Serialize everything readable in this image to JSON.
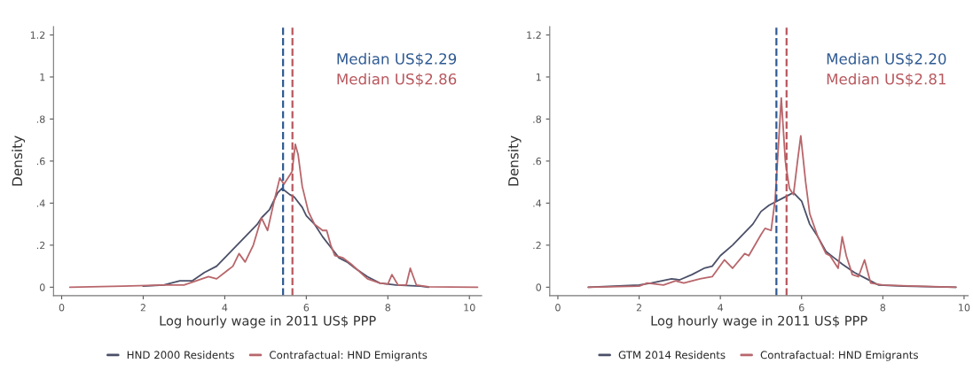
{
  "chart_data": [
    {
      "type": "line",
      "xlabel": "Log hourly wage in 2011 US$ PPP",
      "ylabel": "Density",
      "xlim": [
        -0.2,
        10.3
      ],
      "ylim": [
        -0.04,
        1.24
      ],
      "xticks": [
        0,
        2,
        4,
        6,
        8,
        10
      ],
      "yticks": [
        0,
        {
          "value": 0.2,
          "label": ".2"
        },
        {
          "value": 0.4,
          "label": ".4"
        },
        {
          "value": 0.6,
          "label": ".6"
        },
        {
          "value": 0.8,
          "label": ".8"
        },
        1,
        1.2
      ],
      "grid": false,
      "legend": "bottom",
      "line_style": "solid",
      "marker": "none",
      "series": [
        {
          "name": "HND 2000 Residents",
          "color": "#4b5068",
          "x": [
            2.0,
            2.5,
            2.9,
            3.2,
            3.5,
            3.8,
            4.0,
            4.3,
            4.6,
            4.8,
            4.9,
            5.1,
            5.3,
            5.4,
            5.6,
            5.7,
            5.9,
            6.0,
            6.2,
            6.4,
            6.6,
            6.8,
            7.0,
            7.2,
            7.5,
            7.8,
            8.2,
            8.8,
            9.0
          ],
          "values": [
            0.005,
            0.01,
            0.03,
            0.03,
            0.07,
            0.1,
            0.14,
            0.2,
            0.26,
            0.3,
            0.33,
            0.37,
            0.45,
            0.47,
            0.44,
            0.43,
            0.38,
            0.34,
            0.3,
            0.24,
            0.19,
            0.14,
            0.12,
            0.09,
            0.05,
            0.02,
            0.01,
            0.005,
            0
          ]
        },
        {
          "name": "Contrafactual: HND Emigrants",
          "color": "#b8666b",
          "x": [
            0.2,
            1.5,
            2.5,
            3.0,
            3.3,
            3.6,
            3.8,
            4.0,
            4.2,
            4.35,
            4.5,
            4.7,
            4.9,
            5.05,
            5.2,
            5.35,
            5.45,
            5.55,
            5.65,
            5.73,
            5.8,
            5.9,
            6.05,
            6.2,
            6.4,
            6.5,
            6.6,
            6.7,
            6.9,
            7.1,
            7.5,
            7.8,
            8.0,
            8.1,
            8.25,
            8.45,
            8.55,
            8.7,
            9.0,
            10.2
          ],
          "values": [
            0,
            0.005,
            0.01,
            0.01,
            0.03,
            0.05,
            0.04,
            0.07,
            0.1,
            0.16,
            0.12,
            0.2,
            0.33,
            0.27,
            0.4,
            0.52,
            0.49,
            0.52,
            0.55,
            0.68,
            0.63,
            0.48,
            0.36,
            0.3,
            0.27,
            0.27,
            0.2,
            0.15,
            0.14,
            0.11,
            0.04,
            0.02,
            0.015,
            0.06,
            0.01,
            0.01,
            0.09,
            0.01,
            0.002,
            0
          ]
        }
      ],
      "ref_lines": [
        {
          "axis": "x",
          "value": 5.43,
          "label": "Median US$2.29",
          "color": "#2f5a92",
          "line_style": "dashed"
        },
        {
          "axis": "x",
          "value": 5.66,
          "label": "Median US$2.86",
          "color": "#b8575d",
          "line_style": "dashed"
        }
      ]
    },
    {
      "type": "line",
      "xlabel": "Log hourly wage in 2011 US$ PPP",
      "ylabel": "Density",
      "xlim": [
        -0.2,
        10.1
      ],
      "ylim": [
        -0.04,
        1.24
      ],
      "xticks": [
        0,
        2,
        4,
        6,
        8,
        10
      ],
      "yticks": [
        0,
        {
          "value": 0.2,
          "label": ".2"
        },
        {
          "value": 0.4,
          "label": ".4"
        },
        {
          "value": 0.6,
          "label": ".6"
        },
        {
          "value": 0.8,
          "label": ".8"
        },
        1,
        1.2
      ],
      "grid": false,
      "legend": "bottom",
      "line_style": "solid",
      "marker": "none",
      "series": [
        {
          "name": "GTM 2014 Residents",
          "color": "#4b5068",
          "x": [
            0.75,
            2.0,
            2.3,
            2.8,
            3.0,
            3.3,
            3.6,
            3.8,
            4.0,
            4.3,
            4.6,
            4.8,
            5.0,
            5.2,
            5.5,
            5.7,
            5.8,
            6.0,
            6.2,
            6.4,
            6.6,
            6.8,
            7.0,
            7.3,
            7.6,
            7.9,
            8.5,
            9.8
          ],
          "values": [
            0,
            0.01,
            0.02,
            0.04,
            0.035,
            0.06,
            0.09,
            0.1,
            0.15,
            0.2,
            0.26,
            0.3,
            0.36,
            0.39,
            0.42,
            0.44,
            0.45,
            0.41,
            0.3,
            0.24,
            0.17,
            0.14,
            0.11,
            0.07,
            0.04,
            0.01,
            0.005,
            0
          ]
        },
        {
          "name": "Contrafactual: HND Emigrants",
          "color": "#b8666b",
          "x": [
            0.75,
            2.0,
            2.2,
            2.6,
            2.9,
            3.1,
            3.5,
            3.8,
            4.1,
            4.3,
            4.6,
            4.7,
            5.0,
            5.1,
            5.25,
            5.35,
            5.5,
            5.6,
            5.7,
            5.8,
            5.9,
            5.98,
            6.1,
            6.2,
            6.4,
            6.6,
            6.7,
            6.9,
            7.0,
            7.1,
            7.25,
            7.4,
            7.55,
            7.7,
            8.0,
            9.8
          ],
          "values": [
            0,
            0.005,
            0.02,
            0.01,
            0.03,
            0.02,
            0.04,
            0.05,
            0.13,
            0.09,
            0.16,
            0.15,
            0.25,
            0.28,
            0.27,
            0.42,
            0.9,
            0.6,
            0.47,
            0.44,
            0.6,
            0.72,
            0.5,
            0.35,
            0.24,
            0.16,
            0.15,
            0.09,
            0.24,
            0.15,
            0.06,
            0.05,
            0.13,
            0.02,
            0.01,
            0
          ]
        }
      ],
      "ref_lines": [
        {
          "axis": "x",
          "value": 5.38,
          "label": "Median US$2.20",
          "color": "#2f5a92",
          "line_style": "dashed"
        },
        {
          "axis": "x",
          "value": 5.63,
          "label": "Median US$2.81",
          "color": "#b8575d",
          "line_style": "dashed"
        }
      ]
    }
  ]
}
